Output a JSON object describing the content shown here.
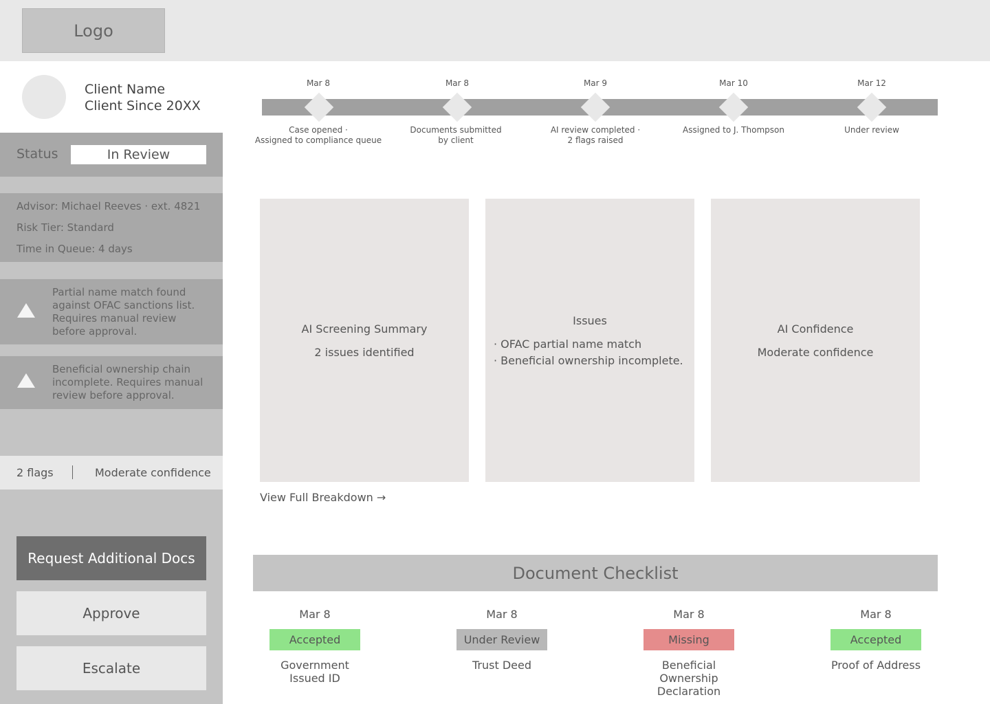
{
  "header": {
    "logo_label": "Logo"
  },
  "client": {
    "name": "Client Name",
    "since": "Client Since 20XX"
  },
  "status": {
    "label": "Status",
    "value": "In Review"
  },
  "info": {
    "advisor": "Advisor: Michael Reeves · ext. 4821",
    "risk_tier": "Risk Tier: Standard",
    "time_in_queue": "Time in Queue: 4 days"
  },
  "alerts": [
    {
      "icon": "warning-triangle-icon",
      "text": "Partial name match found against OFAC sanctions list. Requires manual review before approval."
    },
    {
      "icon": "warning-triangle-icon",
      "text": "Beneficial ownership chain incomplete. Requires manual review before approval."
    }
  ],
  "summary": {
    "flags": "2 flags",
    "confidence": "Moderate confidence"
  },
  "actions": {
    "request_docs": "Request Additional Docs",
    "approve": "Approve",
    "escalate": "Escalate"
  },
  "timeline": [
    {
      "date": "Mar 8",
      "label1": "Case opened ·",
      "label2": "Assigned to compliance queue"
    },
    {
      "date": "Mar 8",
      "label1": "Documents submitted",
      "label2": "by client"
    },
    {
      "date": "Mar 9",
      "label1": "AI review completed ·",
      "label2": "2 flags raised"
    },
    {
      "date": "Mar 10",
      "label1": "Assigned to J. Thompson",
      "label2": ""
    },
    {
      "date": "Mar 12",
      "label1": "Under review",
      "label2": ""
    }
  ],
  "cards": {
    "screening": {
      "title": "AI Screening Summary",
      "subtitle": "2 issues identified"
    },
    "issues": {
      "title": "Issues",
      "items": [
        "· OFAC partial name match",
        "· Beneficial ownership incomplete."
      ]
    },
    "confidence": {
      "title": "AI Confidence",
      "subtitle": "Moderate confidence"
    }
  },
  "view_breakdown": "View Full Breakdown →",
  "checklist": {
    "title": "Document Checklist",
    "colors": {
      "accepted": "#90e38a",
      "under_review": "#b8b8b8",
      "missing": "#e58c8c"
    },
    "documents": [
      {
        "date": "Mar 8",
        "status": "Accepted",
        "name1": "Government",
        "name2": "Issued ID",
        "name3": ""
      },
      {
        "date": "Mar 8",
        "status": "Under Review",
        "name1": "Trust Deed",
        "name2": "",
        "name3": ""
      },
      {
        "date": "Mar 8",
        "status": "Missing",
        "name1": "Beneficial",
        "name2": "Ownership",
        "name3": "Declaration"
      },
      {
        "date": "Mar 8",
        "status": "Accepted",
        "name1": "Proof of Address",
        "name2": "",
        "name3": ""
      }
    ]
  }
}
